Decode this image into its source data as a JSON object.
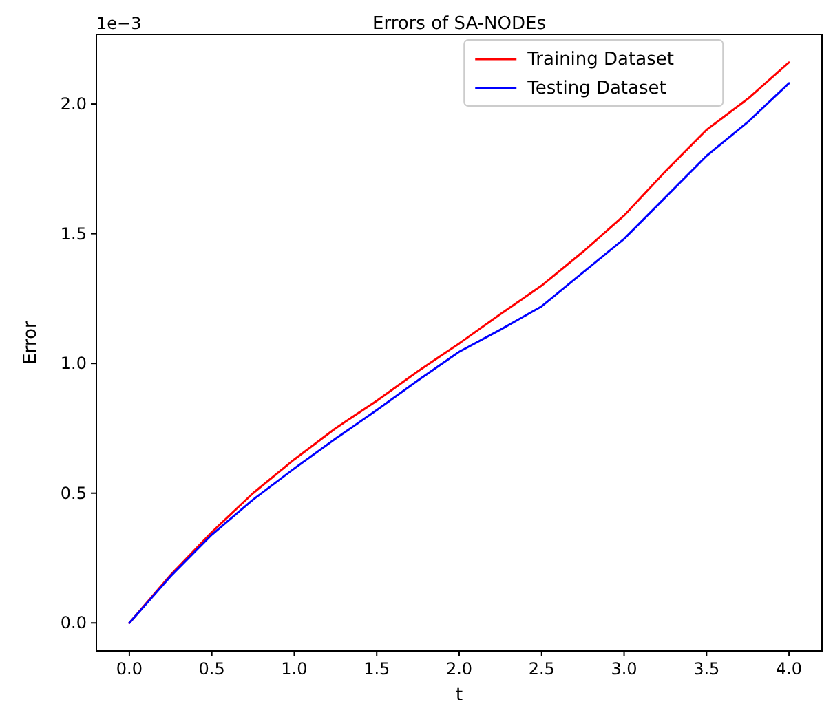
{
  "chart_data": {
    "type": "line",
    "title": "Errors of SA-NODEs",
    "xlabel": "t",
    "ylabel": "Error",
    "annotations": [
      "1e−3"
    ],
    "x": [
      0,
      0.25,
      0.5,
      0.75,
      1.0,
      1.25,
      1.5,
      1.75,
      2.0,
      2.25,
      2.5,
      2.75,
      3.0,
      3.25,
      3.5,
      3.75,
      4.0
    ],
    "series": [
      {
        "name": "Training Dataset",
        "color": "#ff0000",
        "values": [
          0,
          0.185,
          0.35,
          0.5,
          0.63,
          0.75,
          0.856,
          0.97,
          1.077,
          1.19,
          1.3,
          1.43,
          1.57,
          1.74,
          1.9,
          2.02,
          2.16
        ]
      },
      {
        "name": "Testing Dataset",
        "color": "#0000ff",
        "values": [
          0,
          0.18,
          0.34,
          0.475,
          0.595,
          0.71,
          0.82,
          0.935,
          1.045,
          1.13,
          1.22,
          1.35,
          1.48,
          1.64,
          1.8,
          1.93,
          2.08
        ]
      }
    ],
    "xlim": [
      -0.2,
      4.2
    ],
    "ylim": [
      -0.108,
      2.268
    ],
    "xticks": [
      {
        "value": 0,
        "label": "0.0"
      },
      0.5,
      {
        "value": 1,
        "label": "1.0"
      },
      1.5,
      {
        "value": 2,
        "label": "2.0"
      },
      2.5,
      {
        "value": 3,
        "label": "3.0"
      },
      3.5,
      {
        "value": 4,
        "label": "4.0"
      }
    ],
    "yticks": [
      {
        "value": 0,
        "label": "0.0"
      },
      0.5,
      {
        "value": 1,
        "label": "1.0"
      },
      1.5,
      {
        "value": 2,
        "label": "2.0"
      }
    ],
    "legend": "top right",
    "grid": false,
    "marker": "none",
    "line_style": "solid"
  }
}
